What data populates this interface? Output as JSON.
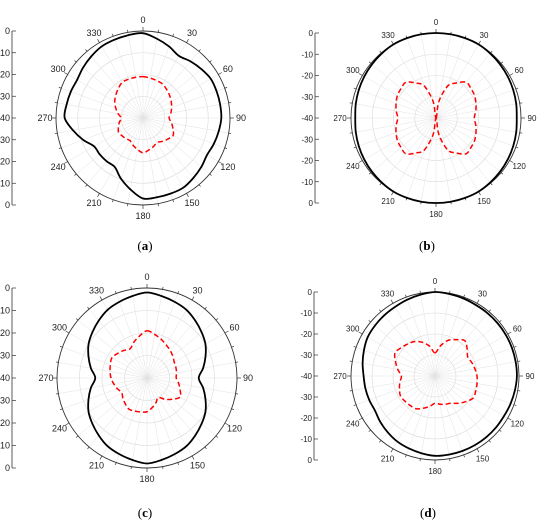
{
  "chart_data": [
    {
      "type": "polar-line",
      "label": "(a)",
      "caption_letter": "a",
      "angular_ticks": [
        "0",
        "30",
        "60",
        "90",
        "120",
        "150",
        "180",
        "210",
        "240",
        "270",
        "300",
        "330"
      ],
      "radial_ticks": [
        "0",
        "-10",
        "-20",
        "-30",
        "-40",
        "-30",
        "-20",
        "-10",
        "0"
      ],
      "rlim": [
        -40,
        0
      ],
      "grid": true,
      "series": [
        {
          "style": "solid",
          "color": "#000000",
          "angles": [
            0,
            30,
            60,
            90,
            120,
            150,
            180,
            210,
            240,
            270,
            300,
            330,
            360
          ],
          "values": [
            -1,
            -7,
            -4,
            -4,
            -6,
            -3,
            -3,
            -14,
            -14,
            -4,
            -5,
            -2,
            -1
          ]
        },
        {
          "style": "dashed",
          "color": "#ff0000",
          "angles": [
            0,
            30,
            60,
            90,
            120,
            150,
            180,
            210,
            240,
            270,
            300,
            330,
            360
          ],
          "values": [
            -21,
            -22,
            -25,
            -28,
            -24,
            -27,
            -24,
            -28,
            -27,
            -30,
            -25,
            -21,
            -21
          ]
        }
      ]
    },
    {
      "type": "polar-line",
      "label": "(b)",
      "caption_letter": "b",
      "angular_ticks": [
        "0",
        "30",
        "60",
        "90",
        "120",
        "150",
        "180",
        "210",
        "240",
        "270",
        "300",
        "330"
      ],
      "radial_ticks": [
        "0",
        "-10",
        "-20",
        "-30",
        "-40",
        "-30",
        "-20",
        "-10",
        "0"
      ],
      "rlim": [
        -40,
        0
      ],
      "grid": true,
      "series": [
        {
          "style": "solid",
          "color": "#000000",
          "angles": [
            0,
            30,
            60,
            90,
            120,
            150,
            180,
            210,
            240,
            270,
            300,
            330,
            360
          ],
          "values": [
            0,
            0,
            -1,
            -2,
            -1,
            0,
            0,
            0,
            -1,
            -2,
            -1,
            0,
            0
          ]
        },
        {
          "style": "dashed",
          "color": "#ff0000",
          "angles": [
            0,
            20,
            40,
            60,
            90,
            120,
            140,
            160,
            180,
            200,
            220,
            240,
            270,
            300,
            320,
            340,
            360
          ],
          "values": [
            -40,
            -24,
            -18,
            -19,
            -22,
            -19,
            -18,
            -24,
            -40,
            -24,
            -18,
            -19,
            -22,
            -19,
            -18,
            -24,
            -40
          ]
        }
      ]
    },
    {
      "type": "polar-line",
      "label": "(c)",
      "caption_letter": "c",
      "angular_ticks": [
        "0",
        "30",
        "60",
        "90",
        "120",
        "150",
        "180",
        "210",
        "240",
        "270",
        "300",
        "330"
      ],
      "radial_ticks": [
        "0",
        "-10",
        "-20",
        "-30",
        "-40",
        "-30",
        "-20",
        "-10",
        "0"
      ],
      "rlim": [
        -40,
        0
      ],
      "grid": true,
      "series": [
        {
          "style": "solid",
          "color": "#000000",
          "angles": [
            0,
            30,
            60,
            90,
            120,
            150,
            180,
            210,
            240,
            270,
            300,
            330,
            360
          ],
          "values": [
            -2,
            -5,
            -10,
            -17,
            -10,
            -5,
            -2,
            -5,
            -10,
            -17,
            -10,
            -5,
            -2
          ]
        },
        {
          "style": "dashed",
          "color": "#ff0000",
          "angles": [
            0,
            30,
            60,
            90,
            120,
            150,
            180,
            210,
            240,
            270,
            300,
            330,
            360
          ],
          "values": [
            -19,
            -23,
            -26,
            -27,
            -23,
            -30,
            -25,
            -24,
            -27,
            -24,
            -22,
            -25,
            -19
          ]
        }
      ]
    },
    {
      "type": "polar-line",
      "label": "(d)",
      "caption_letter": "d",
      "angular_ticks": [
        "0",
        "30",
        "60",
        "90",
        "120",
        "150",
        "180",
        "210",
        "240",
        "270",
        "300",
        "330"
      ],
      "radial_ticks": [
        "0",
        "-10",
        "-20",
        "-30",
        "-40",
        "-30",
        "-20",
        "-10",
        "0"
      ],
      "rlim": [
        -40,
        0
      ],
      "grid": true,
      "series": [
        {
          "style": "solid",
          "color": "#000000",
          "angles": [
            0,
            30,
            60,
            90,
            120,
            150,
            180,
            210,
            240,
            270,
            300,
            330,
            360
          ],
          "values": [
            0,
            -1,
            -1,
            -1,
            -2,
            -2,
            -2,
            -4,
            -7,
            -6,
            -3,
            -2,
            0
          ]
        },
        {
          "style": "dashed",
          "color": "#ff0000",
          "angles": [
            0,
            20,
            40,
            60,
            90,
            120,
            150,
            180,
            210,
            240,
            270,
            300,
            330,
            345,
            360
          ],
          "values": [
            -29,
            -22,
            -18,
            -22,
            -20,
            -19,
            -25,
            -27,
            -22,
            -21,
            -24,
            -18,
            -21,
            -24,
            -29
          ]
        }
      ]
    }
  ]
}
